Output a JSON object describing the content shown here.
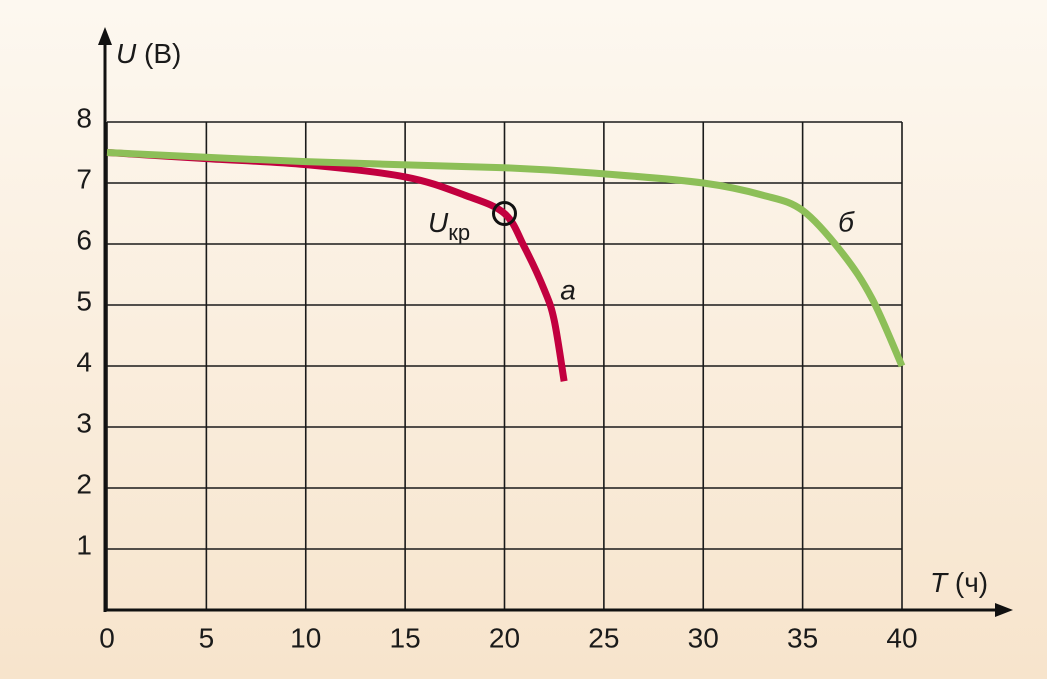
{
  "chart_data": {
    "type": "line",
    "y_label_symbol": "U",
    "y_label_unit": "(В)",
    "x_label_symbol": "T",
    "x_label_unit": "(ч)",
    "xlim": [
      0,
      40
    ],
    "xticks": [
      0,
      5,
      10,
      15,
      20,
      25,
      30,
      35,
      40
    ],
    "ylim": [
      0,
      8
    ],
    "yticks": [
      1,
      2,
      3,
      4,
      5,
      6,
      7,
      8
    ],
    "grid": true,
    "series": [
      {
        "name": "а",
        "color": "#c2003f",
        "x": [
          0,
          5,
          10,
          15,
          18,
          20,
          21,
          22,
          22.5,
          23
        ],
        "values": [
          7.5,
          7.4,
          7.3,
          7.1,
          6.8,
          6.5,
          5.95,
          5.25,
          4.75,
          3.75
        ]
      },
      {
        "name": "б",
        "color": "#8dbf58",
        "x": [
          0,
          10,
          20,
          25,
          30,
          33,
          35,
          37,
          38.5,
          40
        ],
        "values": [
          7.5,
          7.35,
          7.25,
          7.15,
          7.0,
          6.8,
          6.55,
          5.85,
          5.1,
          4.0
        ]
      }
    ],
    "critical_point": {
      "x": 20,
      "y": 6.5,
      "label": "U",
      "label_sub": "кр"
    }
  }
}
